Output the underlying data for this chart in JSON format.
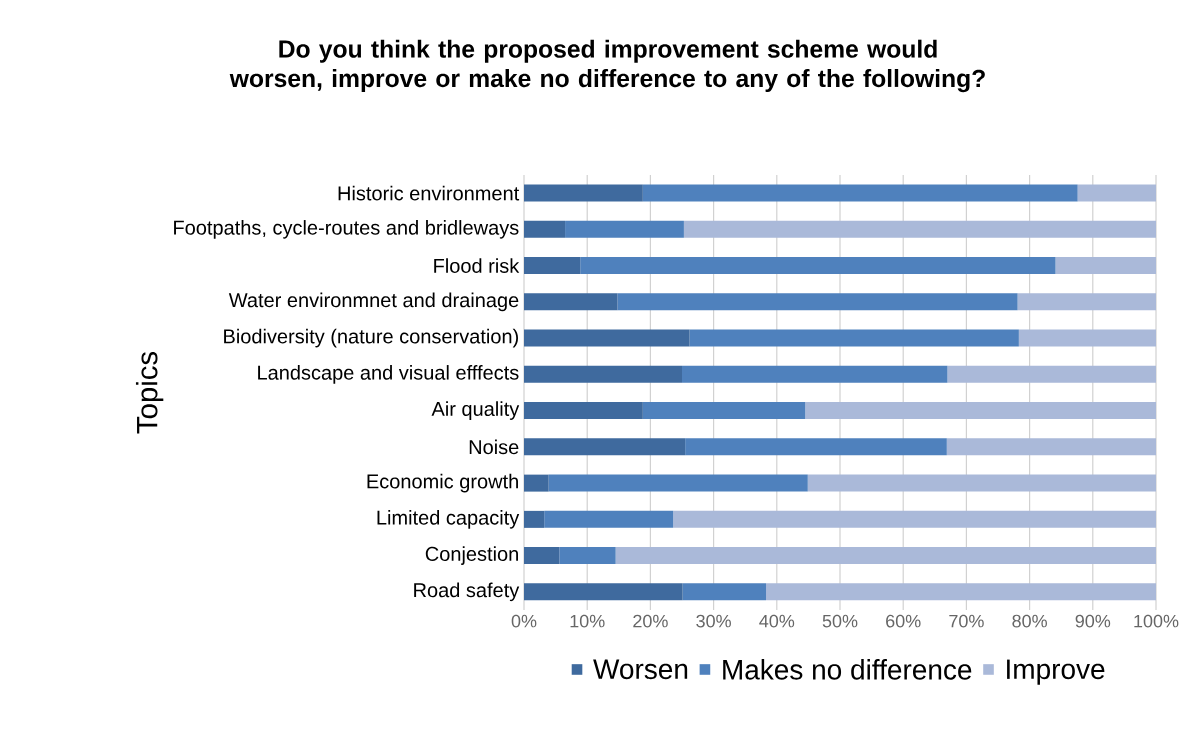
{
  "chart_data": {
    "type": "bar",
    "orientation": "horizontal",
    "stacked": true,
    "title": "Do you think the proposed improvement scheme would worsen, improve or make no difference to any of the following?",
    "ylabel": "Topics",
    "categories": [
      "Historic environment",
      "Footpaths, cycle-routes and bridleways",
      "Flood risk",
      "Water environmnet and drainage",
      "Biodiversity (nature conservation)",
      "Landscape and visual efffects",
      "Air quality",
      "Noise",
      "Economic growth",
      "Limited capacity",
      "Conjestion",
      "Road safety"
    ],
    "series": [
      {
        "name": "Worsen",
        "color": "#3f6a9e",
        "values": [
          18.8,
          6.5,
          8.9,
          14.8,
          26.2,
          25.0,
          18.8,
          25.5,
          3.9,
          3.2,
          5.6,
          25.1
        ]
      },
      {
        "name": "Makes no difference",
        "color": "#4f81bd",
        "values": [
          68.8,
          18.8,
          75.2,
          63.3,
          52.1,
          42.0,
          25.7,
          41.4,
          41.0,
          20.4,
          8.9,
          13.2
        ]
      },
      {
        "name": "Improve",
        "color": "#aab9d9",
        "values": [
          12.4,
          74.7,
          15.9,
          21.9,
          21.7,
          33.0,
          55.5,
          33.1,
          55.1,
          76.4,
          85.5,
          61.7
        ]
      }
    ],
    "xlim": [
      0,
      100
    ],
    "xticks": [
      {
        "value": 0,
        "label": "0%"
      },
      {
        "value": 10,
        "label": "10%"
      },
      {
        "value": 20,
        "label": "20%"
      },
      {
        "value": 30,
        "label": "30%"
      },
      {
        "value": 40,
        "label": "40%"
      },
      {
        "value": 50,
        "label": "50%"
      },
      {
        "value": 60,
        "label": "60%"
      },
      {
        "value": 70,
        "label": "70%"
      },
      {
        "value": 80,
        "label": "80%"
      },
      {
        "value": 90,
        "label": "90%"
      },
      {
        "value": 100,
        "label": "100%"
      }
    ],
    "grid": "x",
    "legend": "bottom"
  }
}
